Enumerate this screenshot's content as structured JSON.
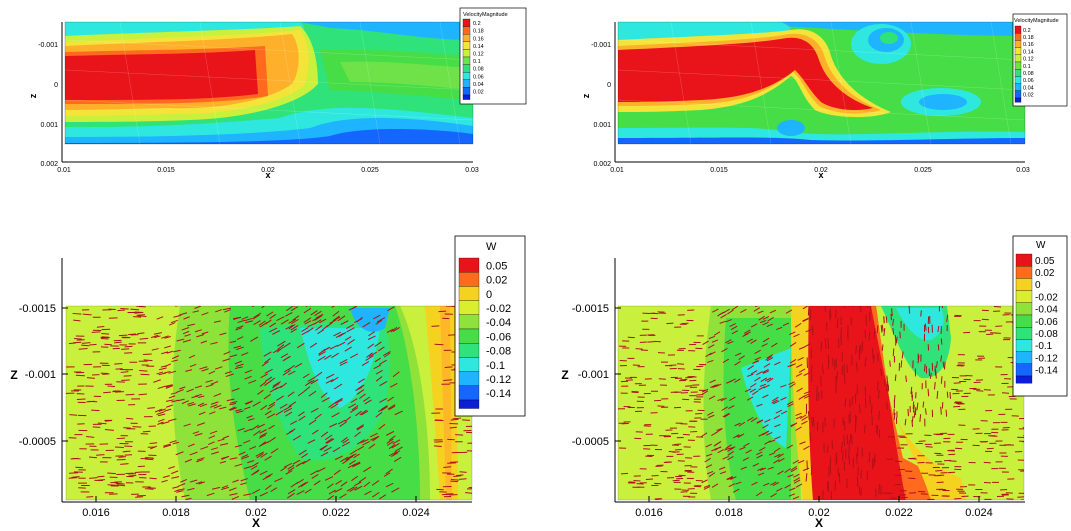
{
  "palette_velocity": [
    "#0a1fd6",
    "#1565ff",
    "#1fb4ff",
    "#2ee8e0",
    "#2fe37a",
    "#6fe24a",
    "#c8f03c",
    "#f3e43a",
    "#ffb02a",
    "#ff6a1f",
    "#e8141a"
  ],
  "palette_w": [
    "#0a1fd6",
    "#1565ff",
    "#1fb4ff",
    "#2ee8e0",
    "#2fe37a",
    "#47dd46",
    "#8fe23a",
    "#d9ef2e",
    "#f5d21f",
    "#ff6a1f",
    "#e8141a"
  ],
  "arrow_color": "#b0101c",
  "chart_data": [
    {
      "type": "heatmap",
      "xlabel": "x",
      "ylabel": "z",
      "xlim": [
        0.01,
        0.03
      ],
      "ylim": [
        0.002,
        -0.0015
      ],
      "xticks": [
        "0.01",
        "0.015",
        "0.02",
        "0.025",
        "0.03"
      ],
      "yticks": [
        "-0.001",
        "0",
        "0.001",
        "0.002"
      ],
      "legend": {
        "title": "VelocityMagnitude",
        "placement": "top-right",
        "levels": [
          "0.2",
          "0.18",
          "0.16",
          "0.14",
          "0.12",
          "0.1",
          "0.08",
          "0.06",
          "0.04",
          "0.02"
        ]
      }
    },
    {
      "type": "heatmap",
      "xlabel": "x",
      "ylabel": "z",
      "xlim": [
        0.01,
        0.03
      ],
      "ylim": [
        0.002,
        -0.0015
      ],
      "xticks": [
        "0.01",
        "0.015",
        "0.02",
        "0.025",
        "0.03"
      ],
      "yticks": [
        "-0.001",
        "0",
        "0.001",
        "0.002"
      ],
      "legend": {
        "title": "VelocityMagnitude",
        "placement": "top-right",
        "levels": [
          "0.2",
          "0.18",
          "0.16",
          "0.14",
          "0.12",
          "0.1",
          "0.08",
          "0.06",
          "0.04",
          "0.02"
        ]
      }
    },
    {
      "type": "heatmap",
      "xlabel": "X",
      "ylabel": "Z",
      "xlim": [
        0.0147,
        0.0251
      ],
      "ylim": [
        -0.0002,
        -0.0019
      ],
      "xticks": [
        "0.016",
        "0.018",
        "0.02",
        "0.022",
        "0.024"
      ],
      "yticks": [
        "-0.0015",
        "-0.001",
        "-0.0005"
      ],
      "legend": {
        "title": "W",
        "placement": "top-right",
        "levels": [
          "0.05",
          "0.02",
          "0",
          "-0.02",
          "-0.04",
          "-0.06",
          "-0.08",
          "-0.1",
          "-0.12",
          "-0.14"
        ]
      }
    },
    {
      "type": "heatmap",
      "xlabel": "X",
      "ylabel": "Z",
      "xlim": [
        0.0147,
        0.0251
      ],
      "ylim": [
        -0.0002,
        -0.0019
      ],
      "xticks": [
        "0.016",
        "0.018",
        "0.02",
        "0.022",
        "0.024"
      ],
      "yticks": [
        "-0.0015",
        "-0.001",
        "-0.0005"
      ],
      "legend": {
        "title": "W",
        "placement": "top-right",
        "levels": [
          "0.05",
          "0.02",
          "0",
          "-0.02",
          "-0.04",
          "-0.06",
          "-0.08",
          "-0.1",
          "-0.12",
          "-0.14"
        ]
      }
    }
  ]
}
